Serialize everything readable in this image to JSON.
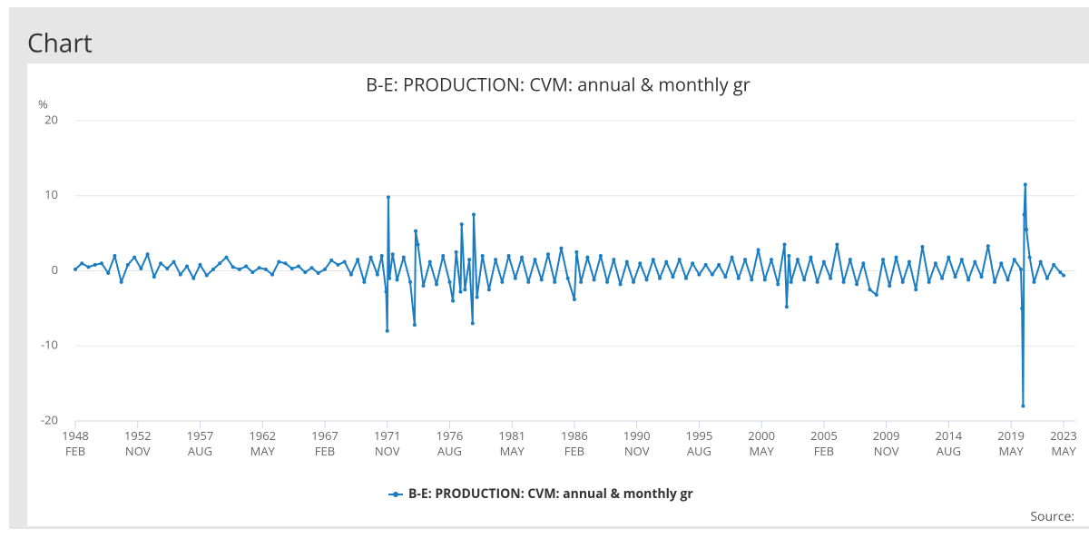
{
  "panel_title": "Chart",
  "source_label": "Source:",
  "chart_data": {
    "type": "line",
    "title": "B-E: PRODUCTION: CVM: annual & monthly gr",
    "y_unit": "%",
    "x": [
      "1948-02",
      "1948-08",
      "1949-02",
      "1949-08",
      "1950-02",
      "1950-08",
      "1951-02",
      "1951-08",
      "1952-02",
      "1952-08",
      "1953-02",
      "1953-08",
      "1954-02",
      "1954-08",
      "1955-02",
      "1955-08",
      "1956-02",
      "1956-08",
      "1957-02",
      "1957-08",
      "1958-02",
      "1958-08",
      "1959-02",
      "1959-08",
      "1960-02",
      "1960-08",
      "1961-02",
      "1961-08",
      "1962-02",
      "1962-08",
      "1963-02",
      "1963-08",
      "1964-02",
      "1964-08",
      "1965-02",
      "1965-08",
      "1966-02",
      "1966-08",
      "1967-02",
      "1967-08",
      "1968-02",
      "1968-08",
      "1969-02",
      "1969-08",
      "1970-02",
      "1970-08",
      "1971-02",
      "1971-06",
      "1971-10",
      "1971-11",
      "1971-12",
      "1972-01",
      "1972-04",
      "1972-08",
      "1973-02",
      "1973-08",
      "1973-12",
      "1974-01",
      "1974-03",
      "1974-08",
      "1975-02",
      "1975-08",
      "1976-02",
      "1976-08",
      "1976-11",
      "1977-02",
      "1977-06",
      "1977-07",
      "1977-10",
      "1978-02",
      "1978-05",
      "1978-06",
      "1978-09",
      "1979-02",
      "1979-08",
      "1980-02",
      "1980-08",
      "1981-02",
      "1981-08",
      "1982-02",
      "1982-08",
      "1983-02",
      "1983-08",
      "1984-02",
      "1984-08",
      "1985-02",
      "1985-08",
      "1986-02",
      "1986-04",
      "1986-08",
      "1987-02",
      "1987-08",
      "1988-02",
      "1988-08",
      "1989-02",
      "1989-08",
      "1990-02",
      "1990-08",
      "1991-02",
      "1991-08",
      "1992-02",
      "1992-08",
      "1993-02",
      "1993-08",
      "1994-02",
      "1994-08",
      "1995-02",
      "1995-08",
      "1996-02",
      "1996-08",
      "1997-02",
      "1997-08",
      "1998-02",
      "1998-08",
      "1999-02",
      "1999-08",
      "2000-02",
      "2000-08",
      "2001-02",
      "2001-08",
      "2002-02",
      "2002-04",
      "2002-06",
      "2002-08",
      "2003-02",
      "2003-08",
      "2004-02",
      "2004-08",
      "2005-02",
      "2005-08",
      "2006-02",
      "2006-08",
      "2007-02",
      "2007-08",
      "2008-02",
      "2008-08",
      "2009-02",
      "2009-08",
      "2010-02",
      "2010-08",
      "2011-02",
      "2011-08",
      "2012-02",
      "2012-08",
      "2013-02",
      "2013-08",
      "2014-02",
      "2014-08",
      "2015-02",
      "2015-08",
      "2016-02",
      "2016-08",
      "2017-02",
      "2017-08",
      "2018-02",
      "2018-08",
      "2019-02",
      "2019-08",
      "2020-02",
      "2020-03",
      "2020-04",
      "2020-05",
      "2020-06",
      "2020-07",
      "2020-10",
      "2021-02",
      "2021-08",
      "2022-02",
      "2022-08",
      "2023-02",
      "2023-05"
    ],
    "series": [
      {
        "name": "B-E: PRODUCTION: CVM: annual & monthly gr",
        "color": "#1a7dc4",
        "values": [
          0.2,
          1.0,
          0.5,
          0.8,
          1.0,
          -0.3,
          2.0,
          -1.5,
          0.8,
          1.8,
          0.3,
          2.2,
          -0.8,
          1.0,
          0.3,
          1.2,
          -0.5,
          0.6,
          -1.0,
          0.8,
          -0.6,
          0.2,
          1.0,
          1.8,
          0.5,
          0.2,
          0.6,
          -0.2,
          0.4,
          0.2,
          -0.5,
          1.2,
          1.0,
          0.3,
          0.6,
          -0.2,
          0.4,
          -0.3,
          0.2,
          1.4,
          0.8,
          1.2,
          -0.5,
          1.5,
          -1.5,
          1.8,
          -0.5,
          2.0,
          -2.8,
          -8.0,
          9.8,
          -1.0,
          2.2,
          -1.2,
          1.8,
          -1.5,
          -7.2,
          5.3,
          3.5,
          -2.0,
          1.2,
          -1.8,
          2.0,
          -1.5,
          -4.0,
          2.5,
          -2.8,
          6.2,
          -2.5,
          1.5,
          -7.0,
          7.5,
          -3.5,
          2.0,
          -2.5,
          1.5,
          -1.5,
          2.0,
          -1.0,
          1.8,
          -1.5,
          1.5,
          -1.2,
          2.2,
          -1.5,
          3.0,
          -1.0,
          -3.8,
          2.5,
          -1.5,
          1.8,
          -1.2,
          2.0,
          -1.5,
          1.5,
          -1.8,
          1.2,
          -1.5,
          1.0,
          -1.2,
          1.5,
          -1.0,
          1.2,
          -0.8,
          1.5,
          -1.0,
          1.0,
          -0.5,
          0.8,
          -0.5,
          0.8,
          -0.8,
          1.8,
          -1.0,
          1.5,
          -1.2,
          2.8,
          -1.2,
          1.5,
          -1.8,
          3.5,
          -4.8,
          2.0,
          -1.5,
          1.5,
          -1.2,
          1.8,
          -1.5,
          1.2,
          -1.0,
          3.5,
          -1.5,
          1.5,
          -1.8,
          1.0,
          -2.5,
          -3.2,
          1.5,
          -2.0,
          1.8,
          -1.5,
          1.2,
          -2.5,
          3.2,
          -1.5,
          1.0,
          -1.0,
          1.8,
          -0.8,
          1.5,
          -1.2,
          1.2,
          -0.8,
          3.3,
          -1.5,
          1.0,
          -1.2,
          1.5,
          0.2,
          -5.0,
          -18.0,
          7.5,
          11.5,
          5.5,
          1.8,
          -1.5,
          1.2,
          -1.0,
          0.8,
          -0.2,
          -0.6
        ]
      }
    ],
    "xlim": [
      "1948-02",
      "2023-05"
    ],
    "xticks": [
      {
        "value": "1948-02",
        "label": "1948 FEB"
      },
      {
        "value": "1952-11",
        "label": "1952 NOV"
      },
      {
        "value": "1957-08",
        "label": "1957 AUG"
      },
      {
        "value": "1962-05",
        "label": "1962 MAY"
      },
      {
        "value": "1967-02",
        "label": "1967 FEB"
      },
      {
        "value": "1971-11",
        "label": "1971 NOV"
      },
      {
        "value": "1976-08",
        "label": "1976 AUG"
      },
      {
        "value": "1981-05",
        "label": "1981 MAY"
      },
      {
        "value": "1986-02",
        "label": "1986 FEB"
      },
      {
        "value": "1990-11",
        "label": "1990 NOV"
      },
      {
        "value": "1995-08",
        "label": "1995 AUG"
      },
      {
        "value": "2000-05",
        "label": "2000 MAY"
      },
      {
        "value": "2005-02",
        "label": "2005 FEB"
      },
      {
        "value": "2009-11",
        "label": "2009 NOV"
      },
      {
        "value": "2014-08",
        "label": "2014 AUG"
      },
      {
        "value": "2019-05",
        "label": "2019 MAY"
      },
      {
        "value": "2023-05",
        "label": "2023 MAY"
      }
    ],
    "ylim": [
      -20,
      20
    ],
    "yticks": [
      -20,
      -10,
      0,
      10,
      20
    ],
    "grid": true,
    "legend": "bottom"
  }
}
